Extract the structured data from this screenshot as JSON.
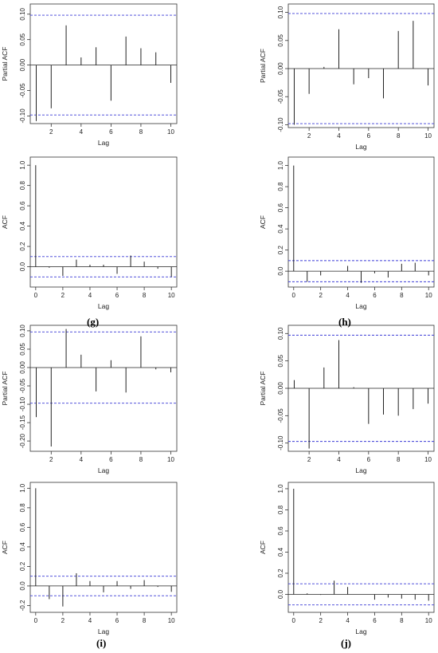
{
  "panel_labels": [
    "(g)",
    "(h)",
    "(i)",
    "(j)"
  ],
  "chart_data": [
    {
      "type": "bar",
      "title": "",
      "xlabel": "Lag",
      "ylabel": "Partial ACF",
      "x": [
        1,
        2,
        3,
        4,
        5,
        6,
        7,
        8,
        9,
        10
      ],
      "values": [
        -0.11,
        -0.085,
        0.078,
        0.015,
        0.035,
        -0.07,
        0.056,
        0.033,
        0.025,
        -0.035
      ],
      "xlim": [
        0.6,
        10.4
      ],
      "ylim": [
        -0.115,
        0.12
      ],
      "xticks": [
        2,
        4,
        6,
        8,
        10
      ],
      "yticks": [
        -0.1,
        -0.05,
        0.0,
        0.05,
        0.1
      ],
      "ytick_labels": [
        "-0.10",
        "-0.05",
        "0.00",
        "0.05",
        "0.10"
      ],
      "confidence_bounds": [
        0.098,
        -0.098
      ]
    },
    {
      "type": "bar",
      "title": "",
      "xlabel": "Lag",
      "ylabel": "Partial ACF",
      "x": [
        1,
        2,
        3,
        4,
        5,
        6,
        7,
        8,
        9,
        10
      ],
      "values": [
        -0.1,
        -0.045,
        0.003,
        0.07,
        -0.028,
        -0.017,
        -0.053,
        0.067,
        0.085,
        -0.03
      ],
      "xlim": [
        0.6,
        10.4
      ],
      "ylim": [
        -0.105,
        0.115
      ],
      "xticks": [
        2,
        4,
        6,
        8,
        10
      ],
      "yticks": [
        -0.1,
        -0.05,
        0.0,
        0.05,
        0.1
      ],
      "ytick_labels": [
        "-0.10",
        "-0.05",
        "0.00",
        "0.05",
        "0.10"
      ],
      "confidence_bounds": [
        0.098,
        -0.098
      ]
    },
    {
      "type": "bar",
      "title": "",
      "xlabel": "Lag",
      "ylabel": "ACF",
      "x": [
        0,
        1,
        2,
        3,
        4,
        5,
        6,
        7,
        8,
        9,
        10
      ],
      "values": [
        1.0,
        -0.01,
        -0.09,
        0.07,
        0.02,
        0.02,
        -0.07,
        0.11,
        0.05,
        -0.02,
        -0.1
      ],
      "xlim": [
        -0.4,
        10.4
      ],
      "ylim": [
        -0.2,
        1.08
      ],
      "xticks": [
        0,
        2,
        4,
        6,
        8,
        10
      ],
      "yticks": [
        0.0,
        0.2,
        0.4,
        0.6,
        0.8,
        1.0
      ],
      "ytick_labels": [
        "0.0",
        "0.2",
        "0.4",
        "0.6",
        "0.8",
        "1.0"
      ],
      "confidence_bounds": [
        0.1,
        -0.1
      ]
    },
    {
      "type": "bar",
      "title": "",
      "xlabel": "Lag",
      "ylabel": "ACF",
      "x": [
        0,
        1,
        2,
        3,
        4,
        5,
        6,
        7,
        8,
        9,
        10
      ],
      "values": [
        1.0,
        -0.1,
        -0.04,
        0.0,
        0.05,
        -0.11,
        -0.02,
        -0.06,
        0.07,
        0.08,
        -0.04
      ],
      "xlim": [
        -0.4,
        10.4
      ],
      "ylim": [
        -0.15,
        1.08
      ],
      "xticks": [
        0,
        2,
        4,
        6,
        8,
        10
      ],
      "yticks": [
        0.0,
        0.2,
        0.4,
        0.6,
        0.8,
        1.0
      ],
      "ytick_labels": [
        "0.0",
        "0.2",
        "0.4",
        "0.6",
        "0.8",
        "1.0"
      ],
      "confidence_bounds": [
        0.1,
        -0.1
      ]
    },
    {
      "type": "bar",
      "title": "",
      "xlabel": "Lag",
      "ylabel": "Partial ACF",
      "x": [
        1,
        2,
        3,
        4,
        5,
        6,
        7,
        8,
        9,
        10
      ],
      "values": [
        -0.135,
        -0.215,
        0.105,
        0.035,
        -0.065,
        0.02,
        -0.068,
        0.085,
        -0.005,
        -0.013
      ],
      "xlim": [
        0.6,
        10.4
      ],
      "ylim": [
        -0.228,
        0.115
      ],
      "xticks": [
        2,
        4,
        6,
        8,
        10
      ],
      "yticks": [
        -0.2,
        -0.15,
        -0.1,
        -0.05,
        0.0,
        0.05,
        0.1
      ],
      "ytick_labels": [
        "-0.20",
        "-0.15",
        "-0.10",
        "-0.05",
        "0.00",
        "0.05",
        "0.10"
      ],
      "confidence_bounds": [
        0.097,
        -0.097
      ]
    },
    {
      "type": "bar",
      "title": "",
      "xlabel": "Lag",
      "ylabel": "Partial ACF",
      "x": [
        1,
        2,
        3,
        4,
        5,
        6,
        7,
        8,
        9,
        10
      ],
      "values": [
        0.015,
        -0.11,
        0.038,
        0.088,
        0.002,
        -0.065,
        -0.048,
        -0.05,
        -0.038,
        -0.028
      ],
      "xlim": [
        0.6,
        10.4
      ],
      "ylim": [
        -0.115,
        0.115
      ],
      "xticks": [
        2,
        4,
        6,
        8,
        10
      ],
      "yticks": [
        -0.1,
        -0.05,
        0.0,
        0.05,
        0.1
      ],
      "ytick_labels": [
        "-0.10",
        "-0.05",
        "0.00",
        "0.05",
        "0.10"
      ],
      "confidence_bounds": [
        0.097,
        -0.097
      ]
    },
    {
      "type": "bar",
      "title": "",
      "xlabel": "Lag",
      "ylabel": "ACF",
      "x": [
        0,
        1,
        2,
        3,
        4,
        5,
        6,
        7,
        8,
        9,
        10
      ],
      "values": [
        1.0,
        -0.135,
        -0.21,
        0.13,
        0.05,
        -0.065,
        0.05,
        -0.03,
        0.06,
        -0.01,
        -0.06
      ],
      "xlim": [
        -0.4,
        10.4
      ],
      "ylim": [
        -0.27,
        1.06
      ],
      "xticks": [
        0,
        2,
        4,
        6,
        8,
        10
      ],
      "yticks": [
        -0.2,
        0.0,
        0.2,
        0.4,
        0.6,
        0.8,
        1.0
      ],
      "ytick_labels": [
        "-0.2",
        "0.0",
        "0.2",
        "0.4",
        "0.6",
        "0.8",
        "1.0"
      ],
      "confidence_bounds": [
        0.1,
        -0.1
      ]
    },
    {
      "type": "bar",
      "title": "",
      "xlabel": "Lag",
      "ylabel": "ACF",
      "x": [
        0,
        1,
        2,
        3,
        4,
        5,
        6,
        7,
        8,
        9,
        10
      ],
      "values": [
        1.0,
        0.01,
        -0.005,
        0.13,
        0.07,
        0.0,
        -0.05,
        -0.03,
        -0.04,
        -0.05,
        -0.06
      ],
      "xlim": [
        -0.4,
        10.4
      ],
      "ylim": [
        -0.17,
        1.06
      ],
      "xticks": [
        0,
        2,
        4,
        6,
        8,
        10
      ],
      "yticks": [
        0.0,
        0.2,
        0.4,
        0.6,
        0.8,
        1.0
      ],
      "ytick_labels": [
        "0.0",
        "0.2",
        "0.4",
        "0.6",
        "0.8",
        "1.0"
      ],
      "confidence_bounds": [
        0.1,
        -0.1
      ]
    }
  ]
}
